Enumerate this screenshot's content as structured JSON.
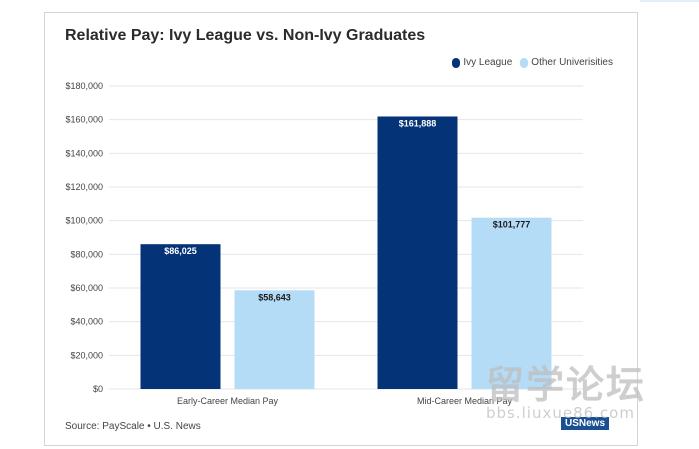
{
  "chart_data": {
    "type": "bar",
    "title": "Relative Pay: Ivy League vs. Non-Ivy Graduates",
    "categories": [
      "Early-Career Median Pay",
      "Mid-Career Median Pay"
    ],
    "series": [
      {
        "name": "Ivy League",
        "values": [
          86025,
          161888
        ],
        "labels": [
          "$86,025",
          "$161,888"
        ],
        "color": "#043378"
      },
      {
        "name": "Other Univerisities",
        "values": [
          58643,
          101777
        ],
        "labels": [
          "$58,643",
          "$101,777"
        ],
        "color": "#b5dcf7"
      }
    ],
    "ylim": [
      0,
      180000
    ],
    "yticks": [
      0,
      20000,
      40000,
      60000,
      80000,
      100000,
      120000,
      140000,
      160000,
      180000
    ],
    "ytick_labels": [
      "$0",
      "$20,000",
      "$40,000",
      "$60,000",
      "$80,000",
      "$100,000",
      "$120,000",
      "$140,000",
      "$160,000",
      "$180,000"
    ],
    "xlabel": "",
    "ylabel": "",
    "grid": true,
    "legend_position": "top-right"
  },
  "source": "Source: PayScale • U.S. News",
  "badge": "USNews",
  "watermark": {
    "main": "留学论坛",
    "sub": "bbs.liuxue86.com"
  },
  "colors": {
    "grid": "#e6e6e6",
    "axis_text": "#444444",
    "label_dark": "#ffffff",
    "label_light": "#1a1a1a"
  }
}
